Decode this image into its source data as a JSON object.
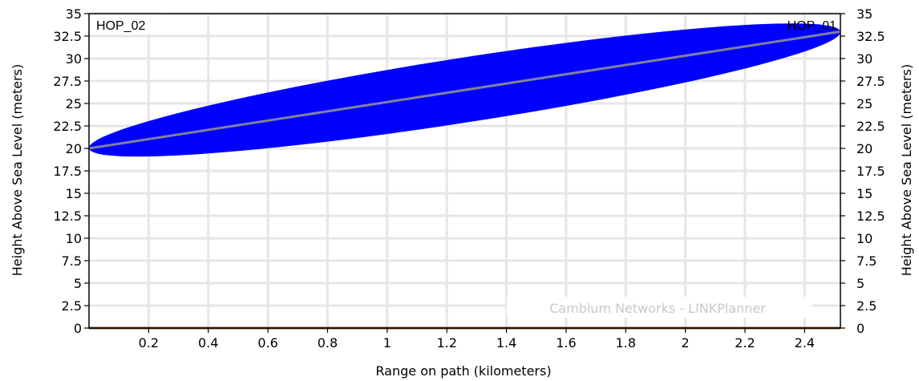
{
  "chart_data": {
    "type": "line",
    "title": "",
    "xlabel": "Range on path (kilometers)",
    "ylabel_left": "Height Above Sea Level (meters)",
    "ylabel_right": "Height Above Sea Level (meters)",
    "xlim": [
      0,
      2.52
    ],
    "ylim": [
      0,
      35
    ],
    "x_ticks": [
      0.2,
      0.4,
      0.6,
      0.8,
      1,
      1.2,
      1.4,
      1.6,
      1.8,
      2,
      2.2,
      2.4
    ],
    "x_tick_labels": [
      "0.2",
      "0.4",
      "0.6",
      "0.8",
      "1",
      "1.2",
      "1.4",
      "1.6",
      "1.8",
      "2",
      "2.2",
      "2.4"
    ],
    "y_ticks": [
      0,
      2.5,
      5,
      7.5,
      10,
      12.5,
      15,
      17.5,
      20,
      22.5,
      25,
      27.5,
      30,
      32.5,
      35
    ],
    "y_tick_labels": [
      "0",
      "2.5",
      "5",
      "7.5",
      "10",
      "12.5",
      "15",
      "17.5",
      "20",
      "22.5",
      "25",
      "27.5",
      "30",
      "32.5",
      "35"
    ],
    "grid": true,
    "endpoints": {
      "left_label": "HOP_02",
      "right_label": "HOP_01"
    },
    "series": [
      {
        "name": "",
        "kind": "line-of-sight",
        "x": [
          0,
          2.52
        ],
        "y": [
          20,
          33
        ],
        "color": "#8080a0"
      },
      {
        "name": "",
        "kind": "terrain",
        "x": [
          0,
          2.52
        ],
        "y": [
          0,
          0
        ],
        "color": "#8b5a2b"
      }
    ],
    "fresnel_zone": {
      "color": "#0000ff",
      "x_start": 0,
      "y_start": 20,
      "x_end": 2.52,
      "y_end": 33,
      "max_half_width_m": 3.6
    },
    "watermark": "Cambium Networks - LINKPlanner"
  }
}
